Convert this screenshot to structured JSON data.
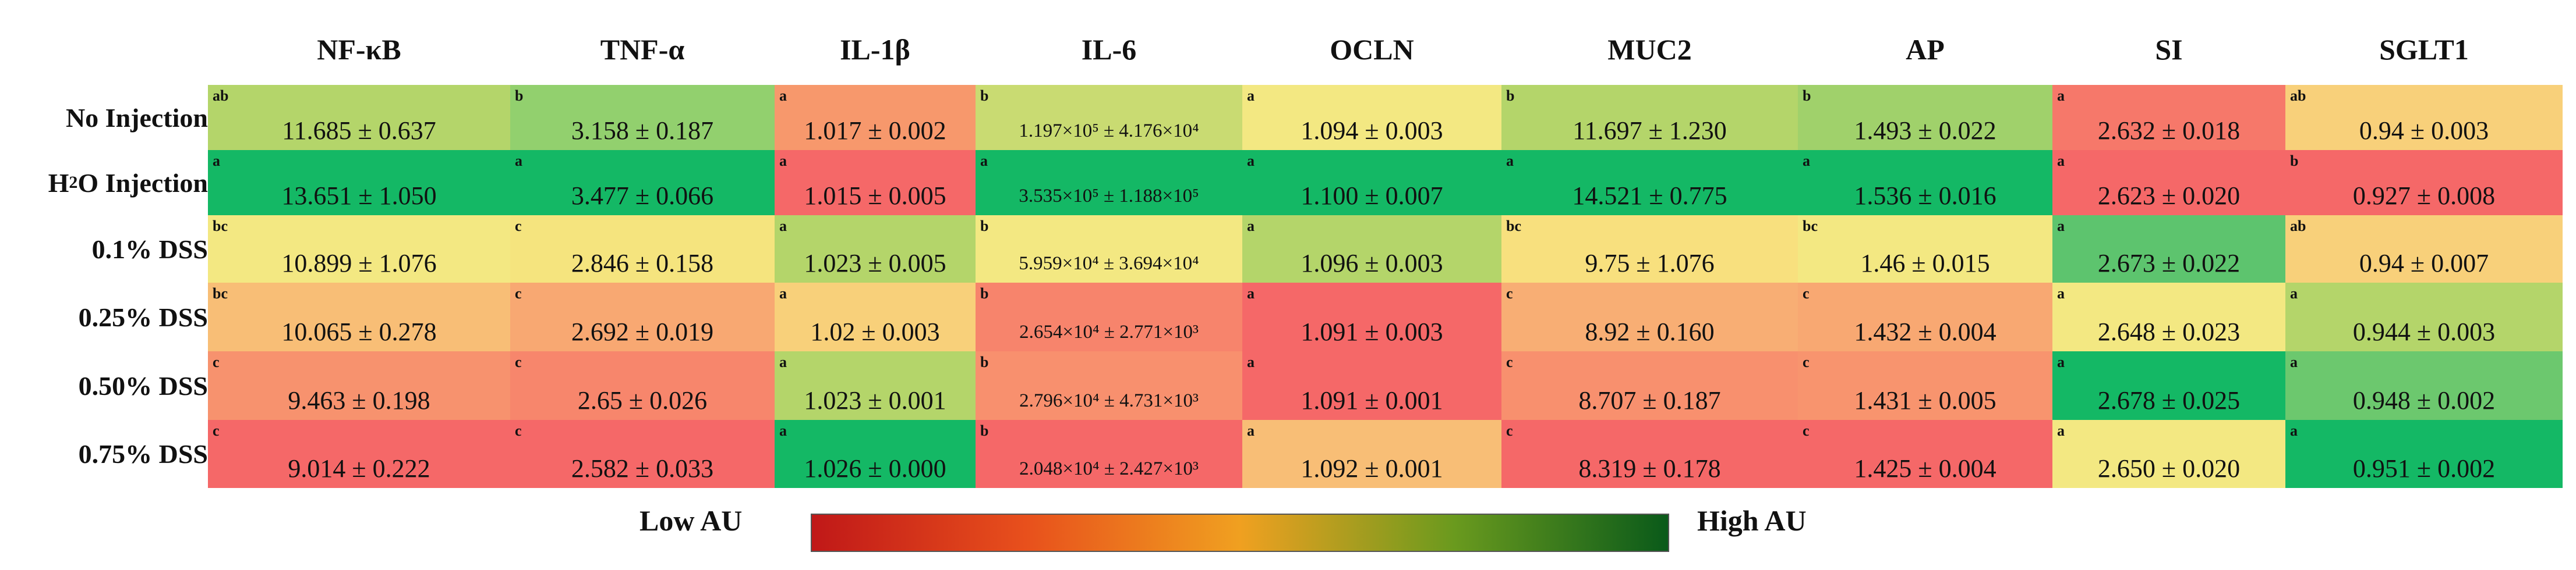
{
  "chart_data": {
    "type": "heatmap",
    "columns": [
      "NF-κB",
      "TNF-α",
      "IL-1β",
      "IL-6",
      "OCLN",
      "MUC2",
      "AP",
      "SI",
      "SGLT1"
    ],
    "rows": [
      "No Injection",
      "H2O Injection",
      "0.1% DSS",
      "0.25% DSS",
      "0.50% DSS",
      "0.75% DSS"
    ],
    "cells": [
      [
        {
          "letter": "ab",
          "value": "11.685 ± 0.637",
          "color": "#b4d56a"
        },
        {
          "letter": "b",
          "value": "3.158 ± 0.187",
          "color": "#92d06e"
        },
        {
          "letter": "a",
          "value": "1.017 ± 0.002",
          "color": "#f7986c"
        },
        {
          "letter": "b",
          "value": "1.197×10⁵ ± 4.176×10⁴",
          "color": "#c9db72"
        },
        {
          "letter": "a",
          "value": "1.094 ± 0.003",
          "color": "#f3e882"
        },
        {
          "letter": "b",
          "value": "11.697 ± 1.230",
          "color": "#b4d56a"
        },
        {
          "letter": "b",
          "value": "1.493 ± 0.022",
          "color": "#a0d16b"
        },
        {
          "letter": "a",
          "value": "2.632 ± 0.018",
          "color": "#f6786a"
        },
        {
          "letter": "ab",
          "value": "0.94 ± 0.003",
          "color": "#f8d07a"
        }
      ],
      [
        {
          "letter": "a",
          "value": "13.651 ± 1.050",
          "color": "#14b865"
        },
        {
          "letter": "a",
          "value": "3.477 ± 0.066",
          "color": "#14b865"
        },
        {
          "letter": "a",
          "value": "1.015 ± 0.005",
          "color": "#f56868"
        },
        {
          "letter": "a",
          "value": "3.535×10⁵ ± 1.188×10⁵",
          "color": "#14b865"
        },
        {
          "letter": "a",
          "value": "1.100 ± 0.007",
          "color": "#14b865"
        },
        {
          "letter": "a",
          "value": "14.521 ± 0.775",
          "color": "#14b865"
        },
        {
          "letter": "a",
          "value": "1.536 ± 0.016",
          "color": "#14b865"
        },
        {
          "letter": "a",
          "value": "2.623 ± 0.020",
          "color": "#f56868"
        },
        {
          "letter": "b",
          "value": "0.927 ± 0.008",
          "color": "#f56868"
        }
      ],
      [
        {
          "letter": "bc",
          "value": "10.899 ± 1.076",
          "color": "#f3e882"
        },
        {
          "letter": "c",
          "value": "2.846 ± 0.158",
          "color": "#f5e47e"
        },
        {
          "letter": "a",
          "value": "1.023 ± 0.005",
          "color": "#b4d56a"
        },
        {
          "letter": "b",
          "value": "5.959×10⁴ ± 3.694×10⁴",
          "color": "#f3e882"
        },
        {
          "letter": "a",
          "value": "1.096 ± 0.003",
          "color": "#b4d56a"
        },
        {
          "letter": "bc",
          "value": "9.75 ± 1.076",
          "color": "#f8e07e"
        },
        {
          "letter": "bc",
          "value": "1.46 ± 0.015",
          "color": "#f3e882"
        },
        {
          "letter": "a",
          "value": "2.673 ± 0.022",
          "color": "#5dc46e"
        },
        {
          "letter": "ab",
          "value": "0.94 ± 0.007",
          "color": "#f8d07a"
        }
      ],
      [
        {
          "letter": "bc",
          "value": "10.065 ± 0.278",
          "color": "#f8be76"
        },
        {
          "letter": "c",
          "value": "2.692 ± 0.019",
          "color": "#f8a872"
        },
        {
          "letter": "a",
          "value": "1.02 ± 0.003",
          "color": "#f8d07a"
        },
        {
          "letter": "b",
          "value": "2.654×10⁴ ± 2.771×10³",
          "color": "#f7846c"
        },
        {
          "letter": "a",
          "value": "1.091 ± 0.003",
          "color": "#f56868"
        },
        {
          "letter": "c",
          "value": "8.92 ± 0.160",
          "color": "#f8ae74"
        },
        {
          "letter": "c",
          "value": "1.432 ± 0.004",
          "color": "#f8a872"
        },
        {
          "letter": "a",
          "value": "2.648 ± 0.023",
          "color": "#f3e882"
        },
        {
          "letter": "a",
          "value": "0.944 ± 0.003",
          "color": "#b4d56a"
        }
      ],
      [
        {
          "letter": "c",
          "value": "9.463 ± 0.198",
          "color": "#f7926e"
        },
        {
          "letter": "c",
          "value": "2.65 ± 0.026",
          "color": "#f7866c"
        },
        {
          "letter": "a",
          "value": "1.023 ± 0.001",
          "color": "#b4d56a"
        },
        {
          "letter": "b",
          "value": "2.796×10⁴ ± 4.731×10³",
          "color": "#f8906e"
        },
        {
          "letter": "a",
          "value": "1.091 ± 0.001",
          "color": "#f56868"
        },
        {
          "letter": "c",
          "value": "8.707 ± 0.187",
          "color": "#f8906e"
        },
        {
          "letter": "c",
          "value": "1.431 ± 0.005",
          "color": "#f8946e"
        },
        {
          "letter": "a",
          "value": "2.678 ± 0.025",
          "color": "#14b865"
        },
        {
          "letter": "a",
          "value": "0.948 ± 0.002",
          "color": "#6cc86e"
        }
      ],
      [
        {
          "letter": "c",
          "value": "9.014 ± 0.222",
          "color": "#f56868"
        },
        {
          "letter": "c",
          "value": "2.582 ± 0.033",
          "color": "#f56868"
        },
        {
          "letter": "a",
          "value": "1.026 ± 0.000",
          "color": "#14b865"
        },
        {
          "letter": "b",
          "value": "2.048×10⁴ ± 2.427×10³",
          "color": "#f56868"
        },
        {
          "letter": "a",
          "value": "1.092 ± 0.001",
          "color": "#f8be76"
        },
        {
          "letter": "c",
          "value": "8.319 ± 0.178",
          "color": "#f56868"
        },
        {
          "letter": "c",
          "value": "1.425 ± 0.004",
          "color": "#f56868"
        },
        {
          "letter": "a",
          "value": "2.650 ± 0.020",
          "color": "#f3e882"
        },
        {
          "letter": "a",
          "value": "0.951 ± 0.002",
          "color": "#14b865"
        }
      ]
    ],
    "legend": {
      "low_label": "Low AU",
      "high_label": "High AU",
      "gradient_colors": [
        "#c01818",
        "#e8501c",
        "#f0a020",
        "#6a9a1e",
        "#0a5a1a"
      ]
    }
  }
}
